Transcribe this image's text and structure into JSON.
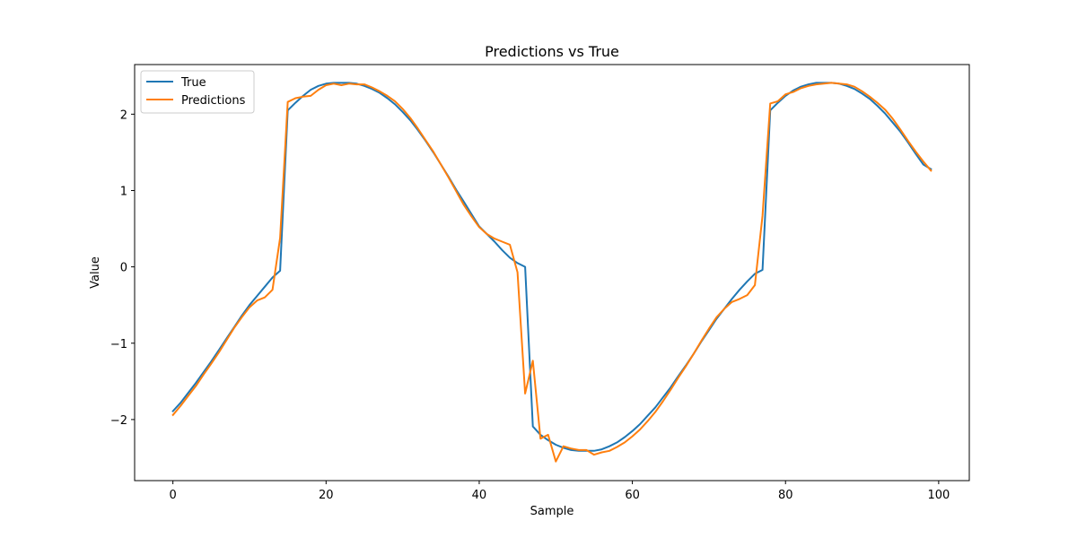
{
  "chart_data": {
    "type": "line",
    "title": "Predictions vs True",
    "xlabel": "Sample",
    "ylabel": "Value",
    "xlim": [
      -5,
      104
    ],
    "ylim": [
      -2.8,
      2.65
    ],
    "xticks": [
      0,
      20,
      40,
      60,
      80,
      100
    ],
    "yticks": [
      -2,
      -1,
      0,
      1,
      2
    ],
    "xtick_labels": [
      "0",
      "20",
      "40",
      "60",
      "80",
      "100"
    ],
    "ytick_labels": [
      "−2",
      "−1",
      "0",
      "1",
      "2"
    ],
    "grid": false,
    "legend_position": "top-left",
    "series": [
      {
        "name": "True",
        "color": "#1f77b4",
        "x": [
          0,
          1,
          2,
          3,
          4,
          5,
          6,
          7,
          8,
          9,
          10,
          11,
          12,
          13,
          14,
          15,
          16,
          17,
          18,
          19,
          20,
          21,
          22,
          23,
          24,
          25,
          26,
          27,
          28,
          29,
          30,
          31,
          32,
          33,
          34,
          35,
          36,
          37,
          38,
          39,
          40,
          41,
          42,
          43,
          44,
          45,
          46,
          47,
          48,
          49,
          50,
          51,
          52,
          53,
          54,
          55,
          56,
          57,
          58,
          59,
          60,
          61,
          62,
          63,
          64,
          65,
          66,
          67,
          68,
          69,
          70,
          71,
          72,
          73,
          74,
          75,
          76,
          77,
          78,
          79,
          80,
          81,
          82,
          83,
          84,
          85,
          86,
          87,
          88,
          89,
          90,
          91,
          92,
          93,
          94,
          95,
          96,
          97,
          98,
          99
        ],
        "y": [
          -1.89,
          -1.78,
          -1.65,
          -1.52,
          -1.38,
          -1.24,
          -1.09,
          -0.94,
          -0.79,
          -0.64,
          -0.5,
          -0.38,
          -0.26,
          -0.14,
          -0.05,
          2.05,
          2.15,
          2.24,
          2.32,
          2.37,
          2.4,
          2.41,
          2.41,
          2.41,
          2.4,
          2.37,
          2.33,
          2.28,
          2.21,
          2.13,
          2.03,
          1.92,
          1.79,
          1.65,
          1.5,
          1.34,
          1.18,
          1.01,
          0.85,
          0.69,
          0.53,
          0.43,
          0.33,
          0.22,
          0.12,
          0.05,
          0.0,
          -2.09,
          -2.2,
          -2.27,
          -2.33,
          -2.37,
          -2.4,
          -2.41,
          -2.41,
          -2.41,
          -2.39,
          -2.35,
          -2.3,
          -2.23,
          -2.15,
          -2.06,
          -1.95,
          -1.84,
          -1.71,
          -1.58,
          -1.43,
          -1.29,
          -1.14,
          -0.98,
          -0.83,
          -0.68,
          -0.55,
          -0.42,
          -0.3,
          -0.19,
          -0.09,
          -0.04,
          2.05,
          2.15,
          2.24,
          2.31,
          2.36,
          2.39,
          2.41,
          2.41,
          2.41,
          2.4,
          2.37,
          2.33,
          2.27,
          2.2,
          2.11,
          2.01,
          1.89,
          1.77,
          1.63,
          1.48,
          1.34,
          1.28
        ]
      },
      {
        "name": "Predictions",
        "color": "#ff7f0e",
        "x": [
          0,
          1,
          2,
          3,
          4,
          5,
          6,
          7,
          8,
          9,
          10,
          11,
          12,
          13,
          14,
          15,
          16,
          17,
          18,
          19,
          20,
          21,
          22,
          23,
          24,
          25,
          26,
          27,
          28,
          29,
          30,
          31,
          32,
          33,
          34,
          35,
          36,
          37,
          38,
          39,
          40,
          41,
          42,
          43,
          44,
          45,
          46,
          47,
          48,
          49,
          50,
          51,
          52,
          53,
          54,
          55,
          56,
          57,
          58,
          59,
          60,
          61,
          62,
          63,
          64,
          65,
          66,
          67,
          68,
          69,
          70,
          71,
          72,
          73,
          74,
          75,
          76,
          77,
          78,
          79,
          80,
          81,
          82,
          83,
          84,
          85,
          86,
          87,
          88,
          89,
          90,
          91,
          92,
          93,
          94,
          95,
          96,
          97,
          98,
          99
        ],
        "y": [
          -1.94,
          -1.82,
          -1.69,
          -1.56,
          -1.41,
          -1.27,
          -1.12,
          -0.96,
          -0.8,
          -0.66,
          -0.53,
          -0.44,
          -0.4,
          -0.3,
          0.38,
          2.16,
          2.21,
          2.23,
          2.24,
          2.32,
          2.38,
          2.4,
          2.38,
          2.4,
          2.39,
          2.39,
          2.35,
          2.3,
          2.24,
          2.17,
          2.07,
          1.95,
          1.81,
          1.66,
          1.51,
          1.34,
          1.17,
          0.99,
          0.81,
          0.66,
          0.52,
          0.43,
          0.37,
          0.33,
          0.29,
          -0.07,
          -1.66,
          -1.23,
          -2.25,
          -2.2,
          -2.55,
          -2.35,
          -2.38,
          -2.4,
          -2.4,
          -2.46,
          -2.43,
          -2.41,
          -2.36,
          -2.3,
          -2.22,
          -2.13,
          -2.02,
          -1.9,
          -1.76,
          -1.61,
          -1.45,
          -1.3,
          -1.14,
          -0.97,
          -0.81,
          -0.66,
          -0.55,
          -0.46,
          -0.42,
          -0.37,
          -0.24,
          0.67,
          2.14,
          2.17,
          2.26,
          2.29,
          2.34,
          2.37,
          2.39,
          2.4,
          2.41,
          2.4,
          2.39,
          2.36,
          2.3,
          2.23,
          2.15,
          2.06,
          1.94,
          1.8,
          1.65,
          1.51,
          1.38,
          1.26
        ]
      }
    ]
  }
}
